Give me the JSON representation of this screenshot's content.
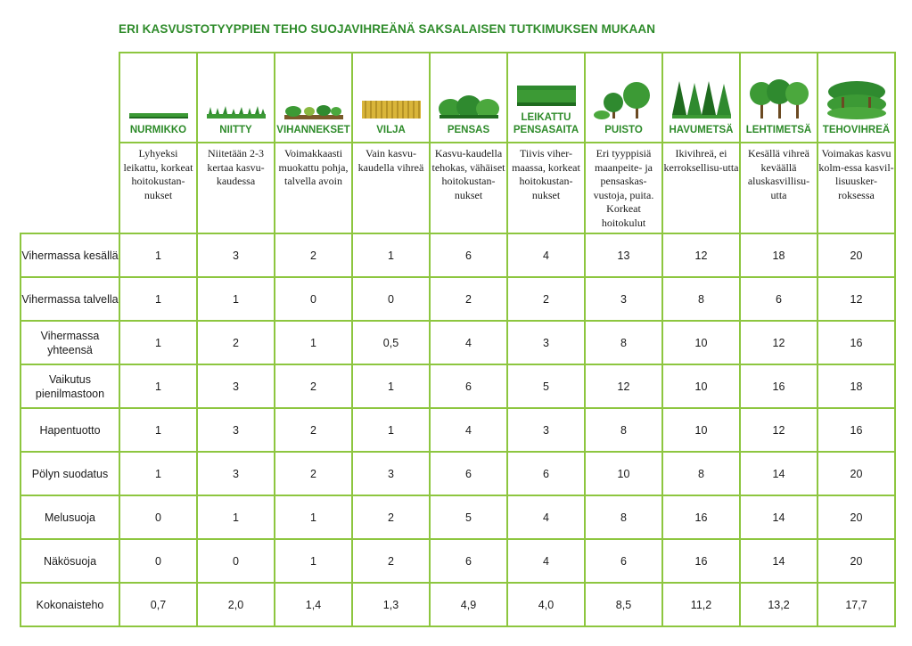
{
  "title": "ERI KASVUSTOTYYPPIEN TEHO SUOJAVIHREÄNÄ SAKSALAISEN TUTKIMUKSEN MUKAAN",
  "colors": {
    "title": "#2e8b2a",
    "grid": "#8dc63f",
    "foliage": "#3c9a35",
    "foliage_dark": "#1f6b1f",
    "wheat": "#d9b53a"
  },
  "columns": [
    {
      "name": "NURMIKKO",
      "icon": "lawn-strip-icon",
      "desc": "Lyhyeksi leikattu, korkeat hoitokustan-nukset"
    },
    {
      "name": "NIITTY",
      "icon": "meadow-grass-icon",
      "desc": "Niitetään 2-3 kertaa kasvu-kaudessa"
    },
    {
      "name": "VIHANNEKSET",
      "icon": "vegetables-icon",
      "desc": "Voimakkaasti muokattu pohja, talvella avoin"
    },
    {
      "name": "VILJA",
      "icon": "grain-field-icon",
      "desc": "Vain kasvu-kaudella vihreä"
    },
    {
      "name": "PENSAS",
      "icon": "shrub-icon",
      "desc": "Kasvu-kaudella tehokas, vähäiset hoitokustan-nukset"
    },
    {
      "name": "LEIKATTU PENSASAITA",
      "icon": "trimmed-hedge-icon",
      "desc": "Tiivis viher-maassa, korkeat hoitokustan-nukset"
    },
    {
      "name": "PUISTO",
      "icon": "park-trees-icon",
      "desc": "Eri tyyppisiä maanpeite- ja pensaskas-vustoja, puita. Korkeat hoitokulut"
    },
    {
      "name": "HAVUMETSÄ",
      "icon": "conifer-forest-icon",
      "desc": "Ikivihreä, ei kerroksellisu-utta"
    },
    {
      "name": "LEHTIMETSÄ",
      "icon": "deciduous-forest-icon",
      "desc": "Kesällä vihreä keväällä aluskasvillisu-utta"
    },
    {
      "name": "TEHOVIHREÄ",
      "icon": "dense-green-icon",
      "desc": "Voimakas kasvu kolm-essa kasvil-lisuusker-roksessa"
    }
  ],
  "rows": [
    {
      "label": "Vihermassa kesällä",
      "values": [
        "1",
        "3",
        "2",
        "1",
        "6",
        "4",
        "13",
        "12",
        "18",
        "20"
      ]
    },
    {
      "label": "Vihermassa talvella",
      "values": [
        "1",
        "1",
        "0",
        "0",
        "2",
        "2",
        "3",
        "8",
        "6",
        "12"
      ]
    },
    {
      "label": "Vihermassa yhteensä",
      "values": [
        "1",
        "2",
        "1",
        "0,5",
        "4",
        "3",
        "8",
        "10",
        "12",
        "16"
      ]
    },
    {
      "label": "Vaikutus pienilmastoon",
      "values": [
        "1",
        "3",
        "2",
        "1",
        "6",
        "5",
        "12",
        "10",
        "16",
        "18"
      ]
    },
    {
      "label": "Hapentuotto",
      "values": [
        "1",
        "3",
        "2",
        "1",
        "4",
        "3",
        "8",
        "10",
        "12",
        "16"
      ]
    },
    {
      "label": "Pölyn suodatus",
      "values": [
        "1",
        "3",
        "2",
        "3",
        "6",
        "6",
        "10",
        "8",
        "14",
        "20"
      ]
    },
    {
      "label": "Melusuoja",
      "values": [
        "0",
        "1",
        "1",
        "2",
        "5",
        "4",
        "8",
        "16",
        "14",
        "20"
      ]
    },
    {
      "label": "Näkösuoja",
      "values": [
        "0",
        "0",
        "1",
        "2",
        "6",
        "4",
        "6",
        "16",
        "14",
        "20"
      ]
    },
    {
      "label": "Kokonaisteho",
      "values": [
        "0,7",
        "2,0",
        "1,4",
        "1,3",
        "4,9",
        "4,0",
        "8,5",
        "11,2",
        "13,2",
        "17,7"
      ]
    }
  ]
}
